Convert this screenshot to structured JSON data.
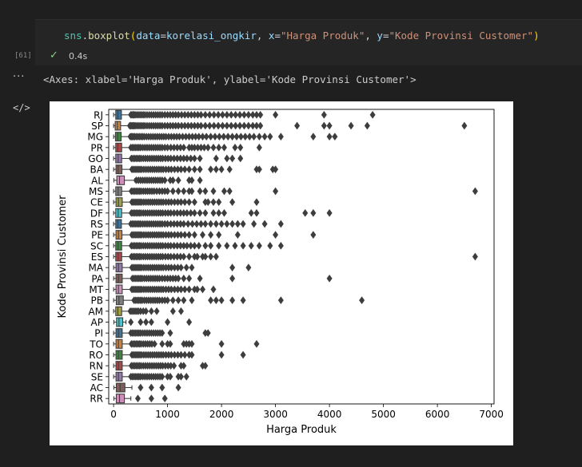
{
  "cell": {
    "code_parts": {
      "module": "sns",
      "dot": ".",
      "func": "boxplot",
      "open": "(",
      "arg1_name": "data",
      "eq1": "=",
      "arg1_val": "korelasi_ongkir",
      "sep1": ", ",
      "arg2_name": "x",
      "eq2": "=",
      "arg2_val": "\"Harga Produk\"",
      "sep2": ", ",
      "arg3_name": "y",
      "eq3": "=",
      "arg3_val": "\"Kode Provinsi Customer\"",
      "close": ")"
    },
    "execution_count": "[61]",
    "status_time": "0.4s"
  },
  "output": {
    "text": "<Axes: xlabel='Harga Produk', ylabel='Kode Provinsi Customer'>"
  },
  "colors": {
    "background": "#1f1f1f",
    "cell_background": "#252526",
    "success": "#89d185"
  },
  "icons": [
    "lightbulb-icon",
    "check-icon",
    "more-icon",
    "code-icon"
  ],
  "chart_data": {
    "type": "boxplot",
    "xlabel": "Harga Produk",
    "ylabel": "Kode Provinsi Customer",
    "xlim": [
      -90,
      7050
    ],
    "xticks": [
      0,
      1000,
      2000,
      3000,
      4000,
      5000,
      6000,
      7000
    ],
    "categories": [
      "RJ",
      "SP",
      "MG",
      "PR",
      "GO",
      "BA",
      "AL",
      "MS",
      "CE",
      "DF",
      "RS",
      "PE",
      "SC",
      "ES",
      "MA",
      "PA",
      "MT",
      "PB",
      "AM",
      "AP",
      "PI",
      "TO",
      "RO",
      "RN",
      "SE",
      "AC",
      "RR"
    ],
    "series": [
      {
        "category": "RJ",
        "q1": 40,
        "median": 80,
        "q3": 145,
        "whisker_low": 1,
        "whisker_high": 300,
        "outliers": [
          320,
          340,
          360,
          380,
          400,
          430,
          460,
          490,
          520,
          550,
          580,
          620,
          660,
          700,
          740,
          780,
          820,
          860,
          900,
          950,
          1000,
          1050,
          1100,
          1150,
          1200,
          1260,
          1320,
          1380,
          1440,
          1500,
          1560,
          1620,
          1700,
          1780,
          1860,
          1940,
          2020,
          2100,
          2180,
          2260,
          2340,
          2420,
          2500,
          2580,
          2650,
          2720,
          3000,
          3900,
          4800
        ]
      },
      {
        "category": "SP",
        "q1": 30,
        "median": 70,
        "q3": 130,
        "whisker_low": 1,
        "whisker_high": 280,
        "outliers": [
          300,
          320,
          340,
          360,
          380,
          400,
          430,
          460,
          490,
          520,
          550,
          580,
          620,
          660,
          700,
          740,
          780,
          820,
          860,
          900,
          950,
          1000,
          1050,
          1100,
          1150,
          1200,
          1260,
          1320,
          1380,
          1440,
          1500,
          1560,
          1620,
          1700,
          1780,
          1860,
          1940,
          2020,
          2100,
          2180,
          2260,
          2340,
          2420,
          2500,
          2580,
          2650,
          2720,
          3400,
          3900,
          4000,
          4400,
          4700,
          6500
        ]
      },
      {
        "category": "MG",
        "q1": 35,
        "median": 75,
        "q3": 140,
        "whisker_low": 1,
        "whisker_high": 290,
        "outliers": [
          310,
          330,
          350,
          370,
          390,
          420,
          450,
          480,
          510,
          540,
          570,
          610,
          650,
          690,
          730,
          770,
          810,
          850,
          890,
          930,
          970,
          1020,
          1070,
          1120,
          1170,
          1220,
          1280,
          1340,
          1400,
          1460,
          1520,
          1580,
          1650,
          1720,
          1800,
          1880,
          1960,
          2040,
          2120,
          2200,
          2280,
          2360,
          2440,
          2520,
          2600,
          2700,
          2800,
          2900,
          3100,
          3700,
          4000,
          4100
        ]
      },
      {
        "category": "PR",
        "q1": 40,
        "median": 80,
        "q3": 150,
        "whisker_low": 1,
        "whisker_high": 300,
        "outliers": [
          320,
          350,
          380,
          410,
          440,
          470,
          500,
          540,
          580,
          620,
          660,
          700,
          740,
          780,
          820,
          860,
          900,
          950,
          1000,
          1060,
          1120,
          1180,
          1240,
          1300,
          1400,
          1450,
          1500,
          1560,
          1620,
          1680,
          1750,
          1850,
          1950,
          2050,
          2250,
          2350,
          2700
        ]
      },
      {
        "category": "GO",
        "q1": 40,
        "median": 85,
        "q3": 150,
        "whisker_low": 1,
        "whisker_high": 310,
        "outliers": [
          330,
          360,
          390,
          420,
          450,
          480,
          510,
          550,
          590,
          630,
          670,
          710,
          750,
          790,
          830,
          870,
          910,
          960,
          1010,
          1060,
          1120,
          1180,
          1240,
          1300,
          1360,
          1430,
          1500,
          1600,
          1900,
          2100,
          2200,
          2350
        ]
      },
      {
        "category": "BA",
        "q1": 45,
        "median": 85,
        "q3": 155,
        "whisker_low": 1,
        "whisker_high": 320,
        "outliers": [
          340,
          370,
          400,
          430,
          460,
          490,
          520,
          560,
          600,
          640,
          680,
          720,
          760,
          800,
          840,
          880,
          920,
          970,
          1020,
          1070,
          1130,
          1190,
          1250,
          1320,
          1400,
          1500,
          1600,
          1800,
          1900,
          2000,
          2150,
          2650,
          2700,
          2950,
          3000
        ]
      },
      {
        "category": "AL",
        "q1": 60,
        "median": 110,
        "q3": 200,
        "whisker_low": 5,
        "whisker_high": 390,
        "outliers": [
          420,
          460,
          500,
          540,
          580,
          620,
          660,
          700,
          740,
          780,
          820,
          860,
          900,
          950,
          1050,
          1100,
          1200,
          1400,
          1450,
          1600
        ]
      },
      {
        "category": "MS",
        "q1": 40,
        "median": 85,
        "q3": 150,
        "whisker_low": 1,
        "whisker_high": 310,
        "outliers": [
          330,
          360,
          390,
          420,
          450,
          480,
          510,
          550,
          590,
          630,
          670,
          710,
          750,
          800,
          850,
          900,
          950,
          1000,
          1100,
          1200,
          1300,
          1400,
          1450,
          1600,
          1700,
          1850,
          2050,
          2150,
          3000,
          6700
        ]
      },
      {
        "category": "CE",
        "q1": 45,
        "median": 90,
        "q3": 160,
        "whisker_low": 1,
        "whisker_high": 320,
        "outliers": [
          340,
          370,
          400,
          430,
          460,
          490,
          520,
          560,
          600,
          640,
          680,
          720,
          760,
          800,
          840,
          880,
          920,
          970,
          1020,
          1070,
          1130,
          1190,
          1250,
          1320,
          1400,
          1500,
          1700,
          1750,
          1850,
          1950,
          2200,
          2650
        ]
      },
      {
        "category": "DF",
        "q1": 40,
        "median": 85,
        "q3": 150,
        "whisker_low": 1,
        "whisker_high": 310,
        "outliers": [
          330,
          360,
          390,
          420,
          450,
          480,
          510,
          550,
          590,
          630,
          670,
          710,
          750,
          790,
          830,
          870,
          910,
          960,
          1010,
          1060,
          1120,
          1180,
          1240,
          1300,
          1360,
          1430,
          1500,
          1600,
          1700,
          1850,
          1950,
          2050,
          2550,
          2650,
          3550,
          3700,
          4000
        ]
      },
      {
        "category": "RS",
        "q1": 40,
        "median": 80,
        "q3": 145,
        "whisker_low": 1,
        "whisker_high": 300,
        "outliers": [
          320,
          350,
          380,
          410,
          440,
          470,
          500,
          540,
          580,
          620,
          660,
          700,
          740,
          780,
          820,
          860,
          900,
          950,
          1000,
          1060,
          1120,
          1180,
          1240,
          1300,
          1380,
          1460,
          1540,
          1620,
          1700,
          1800,
          1900,
          2000,
          2100,
          2200,
          2300,
          2400,
          2600,
          2800,
          3100
        ]
      },
      {
        "category": "PE",
        "q1": 45,
        "median": 90,
        "q3": 155,
        "whisker_low": 1,
        "whisker_high": 320,
        "outliers": [
          340,
          370,
          400,
          430,
          460,
          490,
          520,
          560,
          600,
          640,
          680,
          720,
          760,
          800,
          840,
          880,
          920,
          970,
          1020,
          1070,
          1130,
          1190,
          1250,
          1320,
          1400,
          1500,
          1650,
          1800,
          1950,
          2300,
          3000,
          3700
        ]
      },
      {
        "category": "SC",
        "q1": 40,
        "median": 85,
        "q3": 150,
        "whisker_low": 1,
        "whisker_high": 310,
        "outliers": [
          330,
          360,
          390,
          420,
          450,
          480,
          510,
          550,
          590,
          630,
          670,
          710,
          750,
          790,
          830,
          870,
          910,
          960,
          1010,
          1060,
          1120,
          1180,
          1240,
          1300,
          1360,
          1430,
          1500,
          1580,
          1700,
          1800,
          1950,
          2100,
          2250,
          2400,
          2550,
          2700,
          2900,
          3100
        ]
      },
      {
        "category": "ES",
        "q1": 40,
        "median": 85,
        "q3": 150,
        "whisker_low": 1,
        "whisker_high": 310,
        "outliers": [
          330,
          360,
          390,
          420,
          450,
          480,
          510,
          550,
          590,
          630,
          670,
          710,
          750,
          790,
          830,
          870,
          910,
          960,
          1010,
          1060,
          1120,
          1180,
          1240,
          1300,
          1400,
          1500,
          1550,
          1650,
          1700,
          1800,
          1900,
          6700
        ]
      },
      {
        "category": "MA",
        "q1": 45,
        "median": 90,
        "q3": 160,
        "whisker_low": 1,
        "whisker_high": 320,
        "outliers": [
          340,
          370,
          400,
          430,
          460,
          490,
          520,
          560,
          600,
          640,
          680,
          720,
          760,
          800,
          840,
          880,
          920,
          970,
          1020,
          1070,
          1130,
          1190,
          1250,
          1350,
          1450,
          2200,
          2500
        ]
      },
      {
        "category": "PA",
        "q1": 45,
        "median": 90,
        "q3": 160,
        "whisker_low": 1,
        "whisker_high": 330,
        "outliers": [
          350,
          380,
          410,
          440,
          470,
          500,
          530,
          570,
          610,
          650,
          690,
          730,
          770,
          810,
          850,
          900,
          950,
          1000,
          1050,
          1100,
          1150,
          1200,
          1300,
          1400,
          1600,
          2200,
          4000
        ]
      },
      {
        "category": "MT",
        "q1": 45,
        "median": 90,
        "q3": 160,
        "whisker_low": 1,
        "whisker_high": 320,
        "outliers": [
          340,
          370,
          400,
          430,
          460,
          490,
          520,
          560,
          600,
          640,
          680,
          720,
          760,
          800,
          840,
          880,
          920,
          970,
          1020,
          1070,
          1130,
          1190,
          1250,
          1320,
          1400,
          1500,
          1550,
          1650,
          1850
        ]
      },
      {
        "category": "PB",
        "q1": 50,
        "median": 100,
        "q3": 180,
        "whisker_low": 1,
        "whisker_high": 360,
        "outliers": [
          380,
          410,
          440,
          470,
          500,
          530,
          570,
          610,
          650,
          690,
          730,
          770,
          810,
          850,
          900,
          950,
          1000,
          1100,
          1200,
          1300,
          1450,
          1800,
          1900,
          2000,
          2200,
          2400,
          3100,
          4600
        ]
      },
      {
        "category": "AM",
        "q1": 40,
        "median": 80,
        "q3": 150,
        "whisker_low": 1,
        "whisker_high": 290,
        "outliers": [
          310,
          340,
          370,
          400,
          430,
          460,
          500,
          550,
          600,
          700,
          800,
          1100,
          1250
        ]
      },
      {
        "category": "AP",
        "q1": 55,
        "median": 100,
        "q3": 170,
        "whisker_low": 5,
        "whisker_high": 230,
        "outliers": [
          320,
          500,
          600,
          700,
          1000,
          1400
        ]
      },
      {
        "category": "PI",
        "q1": 45,
        "median": 90,
        "q3": 160,
        "whisker_low": 1,
        "whisker_high": 300,
        "outliers": [
          320,
          350,
          380,
          410,
          440,
          470,
          500,
          540,
          580,
          620,
          660,
          700,
          740,
          780,
          820,
          860,
          900,
          1050,
          1700,
          1750
        ]
      },
      {
        "category": "TO",
        "q1": 45,
        "median": 90,
        "q3": 160,
        "whisker_low": 1,
        "whisker_high": 310,
        "outliers": [
          330,
          360,
          390,
          420,
          450,
          480,
          510,
          550,
          590,
          630,
          670,
          710,
          760,
          900,
          1000,
          1050,
          1300,
          1350,
          1400,
          1450,
          2000,
          2650
        ]
      },
      {
        "category": "RO",
        "q1": 45,
        "median": 90,
        "q3": 160,
        "whisker_low": 1,
        "whisker_high": 320,
        "outliers": [
          340,
          370,
          400,
          430,
          460,
          490,
          520,
          560,
          600,
          640,
          680,
          720,
          760,
          800,
          840,
          880,
          920,
          970,
          1020,
          1070,
          1130,
          1190,
          1250,
          1320,
          1400,
          1450,
          2000,
          2400
        ]
      },
      {
        "category": "RN",
        "q1": 45,
        "median": 90,
        "q3": 160,
        "whisker_low": 1,
        "whisker_high": 310,
        "outliers": [
          330,
          360,
          390,
          420,
          450,
          480,
          510,
          550,
          590,
          630,
          670,
          710,
          750,
          790,
          830,
          870,
          910,
          960,
          1010,
          1060,
          1120,
          1250,
          1300,
          1650,
          1700
        ]
      },
      {
        "category": "SE",
        "q1": 45,
        "median": 90,
        "q3": 160,
        "whisker_low": 1,
        "whisker_high": 300,
        "outliers": [
          320,
          350,
          380,
          410,
          440,
          470,
          500,
          540,
          580,
          620,
          660,
          700,
          740,
          780,
          820,
          860,
          900,
          1000,
          1050,
          1200,
          1250,
          1350
        ]
      },
      {
        "category": "AC",
        "q1": 50,
        "median": 120,
        "q3": 210,
        "whisker_low": 5,
        "whisker_high": 340,
        "outliers": [
          500,
          700,
          900,
          1200
        ]
      },
      {
        "category": "RR",
        "q1": 50,
        "median": 110,
        "q3": 200,
        "whisker_low": 5,
        "whisker_high": 320,
        "outliers": [
          450,
          700,
          950
        ]
      }
    ]
  }
}
